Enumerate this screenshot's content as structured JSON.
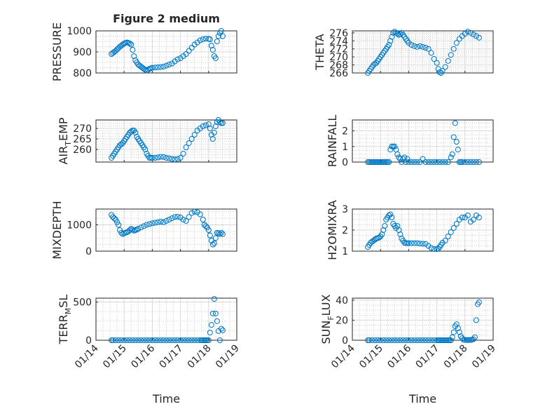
{
  "chart_data": [
    {
      "type": "scatter",
      "title": "Figure 2 medium",
      "ylabel": "PRESSURE",
      "ylim": [
        800,
        1000
      ],
      "yticks": [
        "800",
        "900",
        "1000"
      ],
      "xlim": [
        0,
        5
      ],
      "x": [
        0.55,
        0.6,
        0.65,
        0.7,
        0.75,
        0.8,
        0.85,
        0.9,
        0.95,
        1.0,
        1.05,
        1.1,
        1.15,
        1.2,
        1.25,
        1.3,
        1.35,
        1.4,
        1.45,
        1.5,
        1.55,
        1.6,
        1.65,
        1.7,
        1.75,
        1.8,
        1.85,
        1.9,
        1.95,
        2.0,
        2.1,
        2.2,
        2.3,
        2.4,
        2.5,
        2.6,
        2.7,
        2.8,
        2.9,
        3.0,
        3.1,
        3.2,
        3.3,
        3.4,
        3.5,
        3.6,
        3.7,
        3.8,
        3.9,
        4.0,
        4.05,
        4.1,
        4.15,
        4.2,
        4.25,
        4.3,
        4.35,
        4.4,
        4.45,
        4.5
      ],
      "y": [
        890,
        895,
        900,
        905,
        912,
        918,
        925,
        930,
        935,
        940,
        943,
        945,
        943,
        940,
        935,
        910,
        880,
        860,
        850,
        840,
        835,
        830,
        825,
        820,
        815,
        812,
        815,
        820,
        822,
        825,
        826,
        827,
        828,
        830,
        835,
        840,
        845,
        855,
        865,
        870,
        880,
        890,
        905,
        920,
        935,
        945,
        955,
        960,
        963,
        962,
        960,
        930,
        910,
        880,
        870,
        950,
        975,
        990,
        1000,
        975
      ],
      "grid": true
    },
    {
      "type": "scatter",
      "ylabel": "THETA",
      "ylim": [
        266,
        276.5
      ],
      "yticks": [
        "266",
        "268",
        "270",
        "272",
        "274",
        "276"
      ],
      "xlim": [
        0,
        5
      ],
      "x": [
        0.55,
        0.6,
        0.65,
        0.7,
        0.75,
        0.8,
        0.85,
        0.9,
        0.95,
        1.0,
        1.05,
        1.1,
        1.15,
        1.2,
        1.25,
        1.3,
        1.35,
        1.4,
        1.45,
        1.5,
        1.55,
        1.6,
        1.65,
        1.7,
        1.75,
        1.8,
        1.85,
        1.9,
        1.95,
        2.0,
        2.1,
        2.2,
        2.3,
        2.4,
        2.5,
        2.6,
        2.7,
        2.8,
        2.9,
        3.0,
        3.05,
        3.1,
        3.15,
        3.2,
        3.3,
        3.4,
        3.5,
        3.6,
        3.7,
        3.8,
        3.9,
        4.0,
        4.1,
        4.2,
        4.3,
        4.4,
        4.5
      ],
      "y": [
        266,
        266.5,
        267,
        267.5,
        268,
        268.3,
        268.5,
        269,
        269.5,
        270,
        270.5,
        271,
        271.5,
        272,
        272.5,
        273,
        274,
        275,
        276,
        276.3,
        276,
        275.8,
        275.5,
        275.7,
        276,
        275.5,
        275,
        274.5,
        274,
        273.5,
        273,
        272.7,
        272.5,
        272.7,
        272.5,
        272.3,
        272,
        271,
        269.5,
        268.5,
        267,
        266.2,
        266,
        266.5,
        267.5,
        269,
        270.5,
        272,
        273.5,
        274.5,
        275.2,
        275.8,
        276.3,
        276,
        275.6,
        275.2,
        274.8
      ],
      "grid": true
    },
    {
      "type": "scatter",
      "ylabel": "AIR_TEMP",
      "ylim": [
        254,
        274
      ],
      "yticks": [
        "260",
        "265",
        "270"
      ],
      "xlim": [
        0,
        5
      ],
      "x": [
        0.55,
        0.6,
        0.65,
        0.7,
        0.75,
        0.8,
        0.85,
        0.9,
        0.95,
        1.0,
        1.05,
        1.1,
        1.15,
        1.2,
        1.25,
        1.3,
        1.35,
        1.4,
        1.45,
        1.5,
        1.55,
        1.6,
        1.65,
        1.7,
        1.75,
        1.8,
        1.85,
        1.9,
        1.95,
        2.0,
        2.1,
        2.2,
        2.3,
        2.4,
        2.5,
        2.6,
        2.7,
        2.8,
        2.9,
        3.0,
        3.1,
        3.2,
        3.3,
        3.4,
        3.5,
        3.6,
        3.7,
        3.8,
        3.9,
        4.0,
        4.05,
        4.1,
        4.15,
        4.2,
        4.25,
        4.3,
        4.35,
        4.4,
        4.45,
        4.5
      ],
      "y": [
        256,
        257,
        258,
        259,
        260,
        261,
        262,
        262.5,
        263,
        264,
        265,
        266,
        267,
        268,
        268.5,
        269,
        269,
        268,
        266,
        265,
        264,
        263,
        262,
        261,
        260,
        258,
        257,
        256,
        256,
        256,
        256,
        256.2,
        256.5,
        256.4,
        256,
        255.8,
        255.5,
        255.3,
        255.5,
        256,
        258,
        261,
        263,
        265,
        267,
        269,
        270,
        271,
        271.5,
        272,
        270,
        267,
        265,
        268,
        271,
        273,
        274,
        273,
        272.5,
        272.5
      ],
      "grid": true
    },
    {
      "type": "scatter",
      "ylabel": "RAINFALL",
      "ylim": [
        0,
        2.7
      ],
      "yticks": [
        "0",
        "1",
        "2"
      ],
      "xlim": [
        0,
        5
      ],
      "x": [
        0.55,
        0.6,
        0.65,
        0.7,
        0.75,
        0.8,
        0.85,
        0.9,
        0.95,
        1.0,
        1.05,
        1.1,
        1.15,
        1.2,
        1.25,
        1.3,
        1.35,
        1.4,
        1.45,
        1.5,
        1.55,
        1.6,
        1.65,
        1.7,
        1.75,
        1.8,
        1.85,
        1.9,
        1.95,
        2.0,
        2.1,
        2.2,
        2.3,
        2.4,
        2.5,
        2.6,
        2.7,
        2.8,
        2.9,
        3.0,
        3.1,
        3.2,
        3.3,
        3.4,
        3.5,
        3.55,
        3.6,
        3.65,
        3.7,
        3.75,
        3.8,
        3.85,
        3.9,
        4.0,
        4.1,
        4.2,
        4.3,
        4.4,
        4.5
      ],
      "y": [
        0,
        0,
        0,
        0,
        0,
        0,
        0,
        0,
        0,
        0,
        0,
        0,
        0,
        0,
        0,
        0,
        0.8,
        1.0,
        1.0,
        1.0,
        0.8,
        0.5,
        0.3,
        0.2,
        0,
        0.2,
        0.3,
        0,
        0.2,
        0,
        0,
        0,
        0,
        0,
        0.2,
        0,
        0,
        0,
        0,
        0,
        0,
        0,
        0,
        0,
        0.3,
        0.5,
        1.6,
        2.5,
        1.3,
        0.8,
        0,
        0,
        0,
        0,
        0,
        0,
        0,
        0,
        0
      ],
      "grid": true
    },
    {
      "type": "scatter",
      "ylabel": "MIXDEPTH",
      "ylim": [
        0,
        1600
      ],
      "yticks": [
        "0",
        "1000"
      ],
      "xlim": [
        0,
        5
      ],
      "x": [
        0.55,
        0.6,
        0.65,
        0.7,
        0.75,
        0.8,
        0.85,
        0.9,
        0.95,
        1.0,
        1.05,
        1.1,
        1.15,
        1.2,
        1.25,
        1.3,
        1.35,
        1.4,
        1.45,
        1.5,
        1.6,
        1.7,
        1.8,
        1.9,
        2.0,
        2.1,
        2.2,
        2.3,
        2.4,
        2.5,
        2.6,
        2.7,
        2.8,
        2.9,
        3.0,
        3.1,
        3.2,
        3.3,
        3.4,
        3.5,
        3.6,
        3.7,
        3.8,
        3.85,
        3.9,
        3.95,
        4.0,
        4.05,
        4.1,
        4.15,
        4.2,
        4.25,
        4.3,
        4.35,
        4.4,
        4.45,
        4.5
      ],
      "y": [
        1380,
        1300,
        1250,
        1200,
        1100,
        1000,
        800,
        700,
        650,
        680,
        700,
        720,
        750,
        800,
        850,
        820,
        780,
        800,
        820,
        850,
        900,
        950,
        1000,
        1030,
        1060,
        1080,
        1100,
        1120,
        1100,
        1150,
        1200,
        1250,
        1300,
        1310,
        1280,
        1200,
        1150,
        1300,
        1450,
        1500,
        1480,
        1400,
        1200,
        1000,
        950,
        900,
        800,
        600,
        400,
        250,
        300,
        500,
        700,
        680,
        650,
        700,
        650
      ],
      "grid": true
    },
    {
      "type": "scatter",
      "ylabel": "H2OMIXRA",
      "ylim": [
        1,
        3
      ],
      "yticks": [
        "1",
        "2",
        "3"
      ],
      "xlim": [
        0,
        5
      ],
      "x": [
        0.55,
        0.6,
        0.65,
        0.7,
        0.75,
        0.8,
        0.85,
        0.9,
        0.95,
        1.0,
        1.05,
        1.1,
        1.15,
        1.2,
        1.25,
        1.3,
        1.35,
        1.4,
        1.45,
        1.5,
        1.55,
        1.6,
        1.65,
        1.7,
        1.75,
        1.8,
        1.85,
        1.9,
        1.95,
        2.0,
        2.1,
        2.2,
        2.3,
        2.4,
        2.5,
        2.6,
        2.7,
        2.8,
        2.9,
        3.0,
        3.05,
        3.1,
        3.15,
        3.2,
        3.3,
        3.4,
        3.5,
        3.6,
        3.7,
        3.8,
        3.9,
        4.0,
        4.1,
        4.2,
        4.3,
        4.4,
        4.5
      ],
      "y": [
        1.2,
        1.3,
        1.4,
        1.45,
        1.5,
        1.55,
        1.6,
        1.62,
        1.65,
        1.7,
        1.8,
        2.0,
        2.2,
        2.5,
        2.6,
        2.7,
        2.75,
        2.6,
        2.3,
        2.2,
        2.1,
        2.2,
        2.0,
        1.8,
        1.6,
        1.5,
        1.4,
        1.38,
        1.38,
        1.38,
        1.38,
        1.38,
        1.38,
        1.36,
        1.35,
        1.34,
        1.25,
        1.15,
        1.1,
        1.1,
        1.12,
        1.2,
        1.3,
        1.4,
        1.5,
        1.7,
        1.9,
        2.1,
        2.3,
        2.5,
        2.6,
        2.6,
        2.7,
        2.4,
        2.5,
        2.7,
        2.6
      ],
      "grid": true
    },
    {
      "type": "scatter",
      "ylabel": "TERR_MSL",
      "ylim": [
        0,
        550
      ],
      "yticks": [
        "0",
        "500"
      ],
      "xlim": [
        0,
        5
      ],
      "x": [
        0.55,
        0.6,
        0.7,
        0.8,
        0.9,
        1.0,
        1.1,
        1.2,
        1.3,
        1.4,
        1.5,
        1.6,
        1.7,
        1.8,
        1.9,
        2.0,
        2.1,
        2.2,
        2.3,
        2.4,
        2.5,
        2.6,
        2.7,
        2.8,
        2.9,
        3.0,
        3.1,
        3.2,
        3.3,
        3.4,
        3.5,
        3.6,
        3.7,
        3.75,
        3.8,
        3.85,
        3.9,
        3.95,
        4.0,
        4.05,
        4.1,
        4.15,
        4.2,
        4.25,
        4.3,
        4.35,
        4.4,
        4.45,
        4.5
      ],
      "y": [
        0,
        0,
        0,
        0,
        0,
        0,
        0,
        0,
        0,
        0,
        0,
        0,
        0,
        0,
        0,
        0,
        0,
        0,
        0,
        0,
        0,
        0,
        0,
        0,
        0,
        0,
        0,
        0,
        0,
        0,
        0,
        0,
        0,
        0,
        0,
        0,
        0,
        0,
        0,
        100,
        200,
        350,
        540,
        350,
        250,
        120,
        0,
        150,
        130
      ],
      "grid": true
    },
    {
      "type": "scatter",
      "ylabel": "SUN_FLUX",
      "ylim": [
        0,
        42
      ],
      "yticks": [
        "0",
        "20",
        "40"
      ],
      "xlim": [
        0,
        5
      ],
      "x": [
        0.55,
        0.6,
        0.7,
        0.8,
        0.9,
        1.0,
        1.1,
        1.2,
        1.3,
        1.4,
        1.5,
        1.6,
        1.7,
        1.8,
        1.9,
        2.0,
        2.1,
        2.2,
        2.3,
        2.4,
        2.5,
        2.6,
        2.7,
        2.8,
        2.9,
        3.0,
        3.05,
        3.1,
        3.15,
        3.2,
        3.25,
        3.3,
        3.35,
        3.4,
        3.45,
        3.5,
        3.55,
        3.6,
        3.65,
        3.7,
        3.75,
        3.8,
        3.85,
        3.9,
        3.95,
        4.0,
        4.05,
        4.1,
        4.15,
        4.2,
        4.25,
        4.3,
        4.35,
        4.4,
        4.45,
        4.5
      ],
      "y": [
        0,
        0,
        0,
        0,
        0,
        0,
        0,
        0,
        0,
        0,
        0,
        0,
        0,
        0,
        0,
        0,
        0,
        0,
        0,
        0,
        0,
        0,
        0,
        0,
        0,
        0,
        0,
        0,
        0,
        0,
        0,
        0,
        0,
        0,
        0,
        0,
        3,
        8,
        14,
        16,
        12,
        8,
        4,
        2,
        0.5,
        0.3,
        0.3,
        0.2,
        0.3,
        0.3,
        0.5,
        1,
        3,
        20,
        36,
        38
      ],
      "grid": true
    }
  ],
  "xaxis": {
    "label": "Time",
    "ticks": [
      "01/14",
      "01/15",
      "01/16",
      "01/17",
      "01/18",
      "01/19"
    ]
  },
  "colors": {
    "marker": "#0072BD",
    "axis": "#262626"
  }
}
